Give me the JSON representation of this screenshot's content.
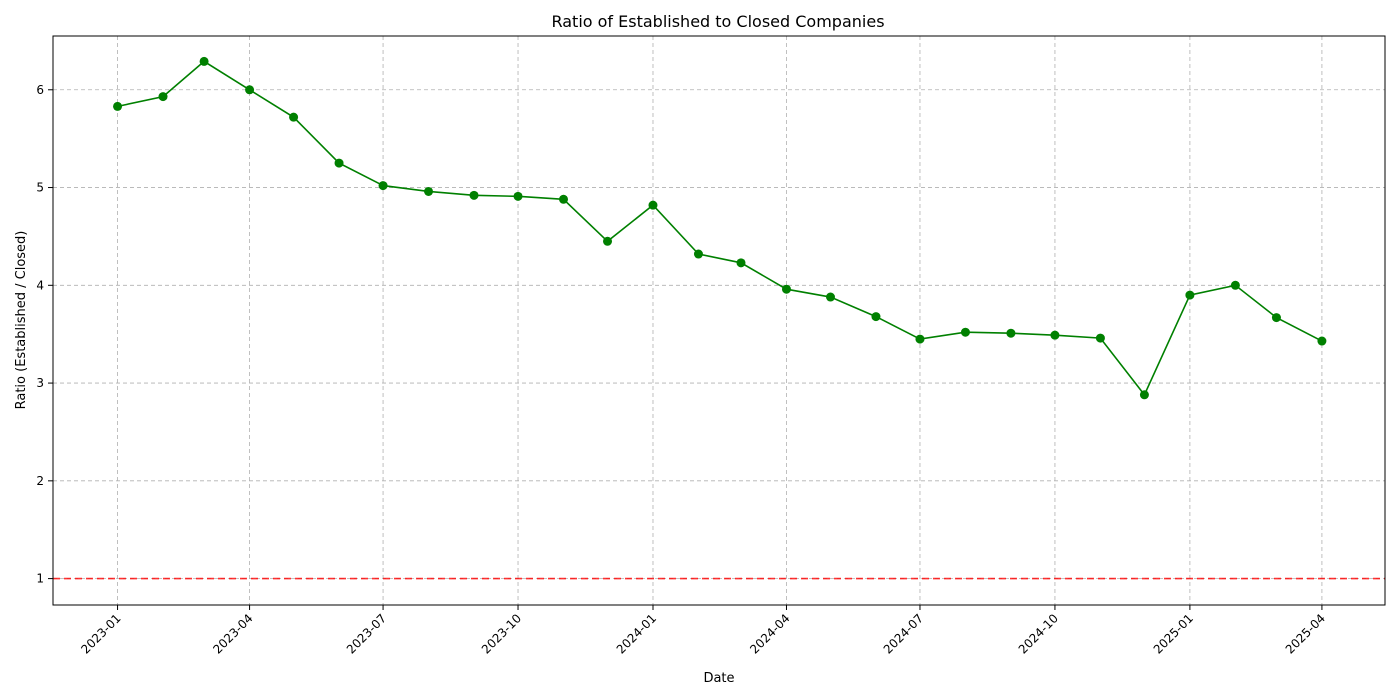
{
  "chart_data": {
    "type": "line",
    "title": "Ratio of Established to Closed Companies",
    "xlabel": "Date",
    "ylabel": "Ratio (Established / Closed)",
    "x": [
      "2023-01",
      "2023-02",
      "2023-03",
      "2023-04",
      "2023-05",
      "2023-06",
      "2023-07",
      "2023-08",
      "2023-09",
      "2023-10",
      "2023-11",
      "2023-12",
      "2024-01",
      "2024-02",
      "2024-03",
      "2024-04",
      "2024-05",
      "2024-06",
      "2024-07",
      "2024-08",
      "2024-09",
      "2024-10",
      "2024-11",
      "2024-12",
      "2025-01",
      "2025-02",
      "2025-03",
      "2025-04"
    ],
    "series": [
      {
        "color": "#008000",
        "values": [
          5.83,
          5.93,
          6.29,
          6.0,
          5.72,
          5.25,
          5.02,
          4.96,
          4.92,
          4.91,
          4.88,
          4.45,
          4.82,
          4.32,
          4.23,
          3.96,
          3.88,
          3.68,
          3.45,
          3.52,
          3.51,
          3.49,
          3.46,
          2.88,
          3.9,
          4.0,
          3.67,
          3.43
        ]
      }
    ],
    "reference_line": {
      "y": 1,
      "color": "#ff0000",
      "style": "dashed"
    },
    "xticks": [
      "2023-01",
      "2023-04",
      "2023-07",
      "2023-10",
      "2024-01",
      "2024-04",
      "2024-07",
      "2024-10",
      "2025-01",
      "2025-04"
    ],
    "yticks": [
      1,
      2,
      3,
      4,
      5,
      6
    ],
    "ylim": [
      0.73,
      6.55
    ],
    "xlim": [
      "2022-11-18",
      "2025-05-14"
    ],
    "grid": true
  }
}
